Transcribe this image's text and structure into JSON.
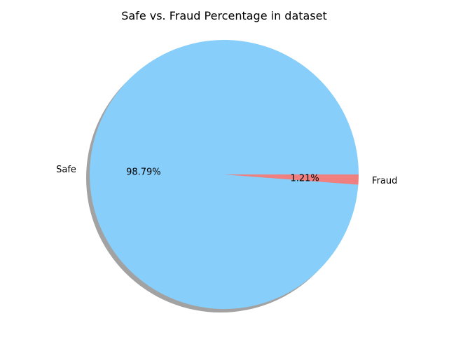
{
  "chart_data": {
    "type": "pie",
    "title": "Safe vs. Fraud Percentage in dataset",
    "labels": [
      "Safe",
      "Fraud"
    ],
    "values": [
      98.79,
      1.21
    ],
    "autopct": [
      "98.79%",
      "1.21%"
    ],
    "colors": [
      "#87cefa",
      "#f08080"
    ],
    "shadow": true,
    "legend": false
  }
}
